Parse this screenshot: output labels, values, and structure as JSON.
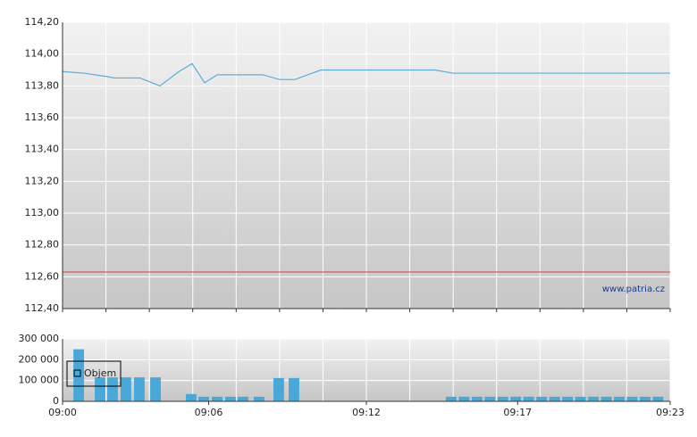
{
  "chart_data": [
    {
      "type": "line",
      "x": [
        0,
        1.66,
        3.32,
        4.01,
        6.0,
        7.53,
        9.0,
        10.02,
        10.99,
        11.96,
        15.48,
        16.79,
        17.97,
        19.97,
        28.82,
        30.21,
        47
      ],
      "values": [
        113.89,
        113.88,
        113.86,
        113.85,
        113.85,
        113.8,
        113.89,
        113.94,
        113.82,
        113.87,
        113.87,
        113.84,
        113.84,
        113.9,
        113.9,
        113.88,
        113.88
      ],
      "color": "#5aaed6",
      "reference_line": {
        "value": 112.63,
        "color": "#d04040"
      },
      "annotation": "www.patria.cz",
      "xlim": [
        0,
        47
      ],
      "ylim": [
        112.4,
        114.2
      ],
      "yticks": [
        {
          "value": 112.4,
          "label": "112,40"
        },
        {
          "value": 112.6,
          "label": "112,60"
        },
        {
          "value": 112.8,
          "label": "112,80"
        },
        {
          "value": 113.0,
          "label": "113,00"
        },
        {
          "value": 113.2,
          "label": "113,20"
        },
        {
          "value": 113.4,
          "label": "113,40"
        },
        {
          "value": 113.6,
          "label": "113,60"
        },
        {
          "value": 113.8,
          "label": "113,80"
        },
        {
          "value": 114.0,
          "label": "114,00"
        },
        {
          "value": 114.2,
          "label": "114,20"
        }
      ],
      "grid": true
    },
    {
      "type": "bar",
      "x": [
        1.25,
        2.9,
        3.87,
        4.9,
        5.94,
        7.19,
        9.95,
        10.92,
        11.96,
        12.99,
        13.96,
        15.2,
        16.72,
        17.9,
        30.06,
        31.06,
        32.06,
        33.06,
        34.06,
        35.06,
        36.06,
        37.06,
        38.06,
        39.06,
        40.06,
        41.06,
        42.06,
        43.06,
        44.06,
        45.06,
        46.06
      ],
      "series": [
        {
          "name": "Objem",
          "color": "#4aa8d8",
          "values": [
            250000,
            115000,
            115000,
            115000,
            115000,
            115000,
            35000,
            22000,
            22000,
            22000,
            22000,
            22000,
            112000,
            112000,
            22000,
            22000,
            22000,
            22000,
            22000,
            22000,
            22000,
            22000,
            22000,
            22000,
            22000,
            22000,
            22000,
            22000,
            22000,
            22000,
            22000
          ]
        }
      ],
      "xlim": [
        0,
        47
      ],
      "xticks": [
        {
          "value": 0,
          "label": "09:00"
        },
        {
          "value": 11.3,
          "label": "09:06"
        },
        {
          "value": 23.5,
          "label": "09:12"
        },
        {
          "value": 35.2,
          "label": "09:17"
        },
        {
          "value": 47,
          "label": "09:23"
        }
      ],
      "ylim": [
        0,
        300000
      ],
      "yticks": [
        0,
        {
          "value": 100000,
          "label": "100 000"
        },
        {
          "value": 200000,
          "label": "200 000"
        },
        {
          "value": 300000,
          "label": "300 000"
        }
      ],
      "grid": true,
      "legend": "top-left"
    }
  ]
}
